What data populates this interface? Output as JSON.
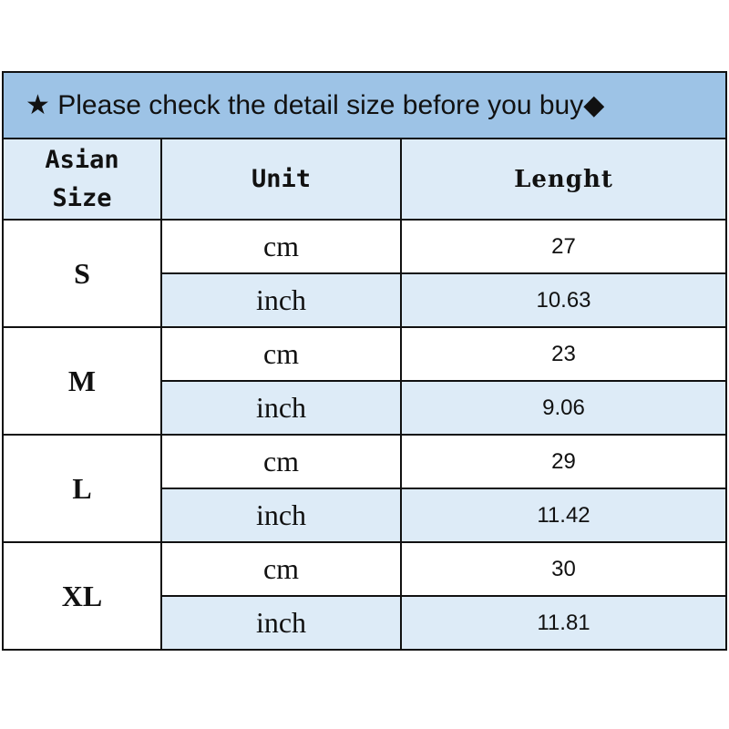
{
  "title": "★ Please check the detail size before you buy◆",
  "headers": {
    "size": "Asian Size",
    "unit": "Unit",
    "length": "Lenght"
  },
  "rows": [
    {
      "size": "S",
      "cm": "27",
      "inch": "10.63"
    },
    {
      "size": "M",
      "cm": "23",
      "inch": "9.06"
    },
    {
      "size": "L",
      "cm": "29",
      "inch": "11.42"
    },
    {
      "size": "XL",
      "cm": "30",
      "inch": "11.81"
    }
  ],
  "units": {
    "cm": "cm",
    "inch": "inch"
  },
  "colors": {
    "title_bg": "#9dc3e6",
    "header_bg": "#ddebf7"
  }
}
